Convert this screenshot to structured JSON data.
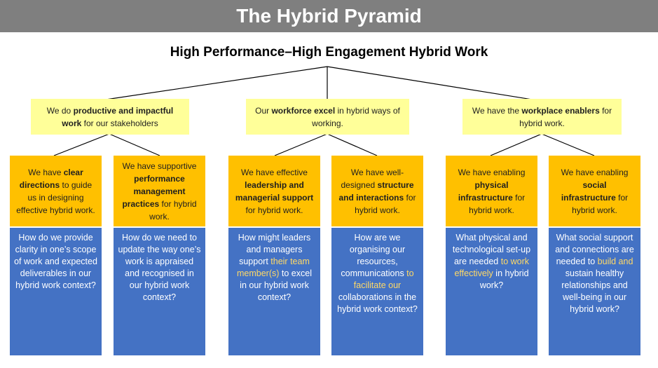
{
  "title": "The Hybrid Pyramid",
  "subtitle": "High Performance–High Engagement Hybrid Work",
  "pillars": [
    {
      "pre": "We do ",
      "bold": "productive and impactful work",
      "post": " for our stakeholders"
    },
    {
      "pre": "Our ",
      "bold": "workforce excel",
      "post": " in hybrid ways of working."
    },
    {
      "pre": "We have the ",
      "bold": "workplace enablers",
      "post": " for hybrid work."
    }
  ],
  "enablers": [
    {
      "pre": "We have ",
      "bold": "clear directions",
      "post": " to guide us in designing effective hybrid work."
    },
    {
      "pre": "We have supportive ",
      "bold": "performance management practices",
      "post": " for hybrid work."
    },
    {
      "pre": "We have effective ",
      "bold": "leadership and managerial support",
      "post": " for hybrid work."
    },
    {
      "pre": "We have well-designed ",
      "bold": "structure and interactions",
      "post": " for hybrid work."
    },
    {
      "pre": "We have enabling ",
      "bold": "physical infrastructure",
      "post": " for hybrid work."
    },
    {
      "pre": "We have enabling ",
      "bold": "social infrastructure",
      "post": " for hybrid work."
    }
  ],
  "questions": [
    {
      "pre": "How do we provide clarity in one’s scope of work and expected deliverables in our hybrid work context?",
      "hl": "",
      "post": ""
    },
    {
      "pre": "How do we need to update the way one’s work is appraised and recognised in our hybrid work context?",
      "hl": "",
      "post": ""
    },
    {
      "pre": "How might leaders and managers support ",
      "hl": "their team member(s)",
      "post": " to excel in our hybrid work context?"
    },
    {
      "pre": "How are we organising our resources, communications ",
      "hl": "to facilitate our",
      "post": " collaborations in the hybrid work context?"
    },
    {
      "pre": "What physical and technological set-up are needed ",
      "hl": "to work effectively",
      "post": " in hybrid work?"
    },
    {
      "pre": "What social support and connections are needed to ",
      "hl": "build and",
      "post": " sustain healthy relationships and well-being in our hybrid work?"
    }
  ],
  "colors": {
    "banner": "#7f7f7f",
    "pillar": "#ffff99",
    "enabler": "#ffc000",
    "question": "#4472c4",
    "highlight": "#ffd966"
  }
}
